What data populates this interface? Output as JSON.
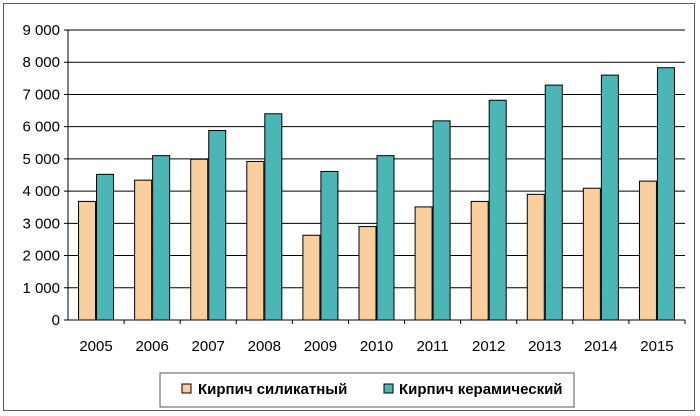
{
  "chart_data": {
    "type": "bar",
    "title": "",
    "xlabel": "",
    "ylabel": "",
    "categories": [
      "2005",
      "2006",
      "2007",
      "2008",
      "2009",
      "2010",
      "2011",
      "2012",
      "2013",
      "2014",
      "2015"
    ],
    "series": [
      {
        "name": "Кирпич силикатный",
        "color": "#F9CF9E",
        "values": [
          3680,
          4340,
          4990,
          4920,
          2630,
          2900,
          3510,
          3680,
          3900,
          4090,
          4310
        ]
      },
      {
        "name": "Кирпич керамический",
        "color": "#4CB6B6",
        "values": [
          4520,
          5100,
          5880,
          6400,
          4610,
          5100,
          6180,
          6820,
          7290,
          7600,
          7830
        ]
      }
    ],
    "ylim": [
      0,
      9000
    ],
    "yticks": [
      0,
      1000,
      2000,
      3000,
      4000,
      5000,
      6000,
      7000,
      8000,
      9000
    ],
    "ytick_labels": [
      "0",
      "1 000",
      "2 000",
      "3 000",
      "4 000",
      "5 000",
      "6 000",
      "7 000",
      "8 000",
      "9 000"
    ],
    "grid": true,
    "legend_position": "bottom-center"
  }
}
